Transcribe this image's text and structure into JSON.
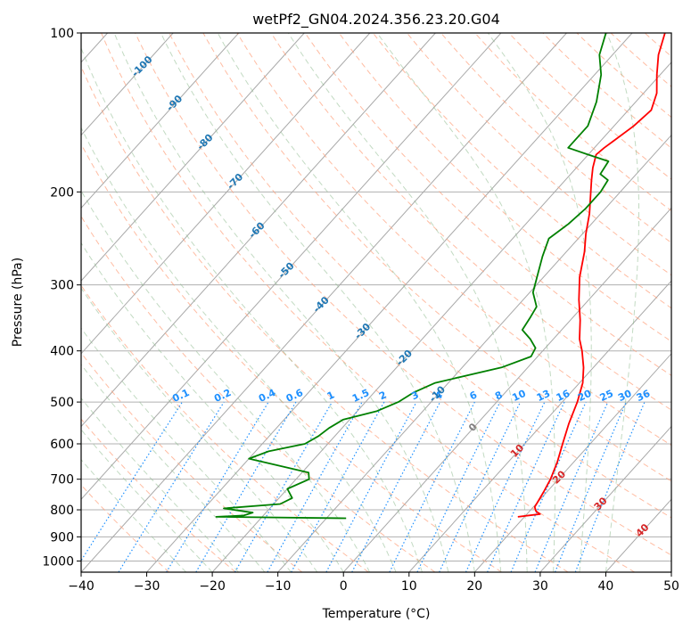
{
  "chart_data": {
    "type": "line",
    "subtype": "skew-T log-P diagram",
    "title": "wetPf2_GN04.2024.356.23.20.G04",
    "xlabel": "Temperature (°C)",
    "ylabel": "Pressure (hPa)",
    "xlim": [
      -40,
      50
    ],
    "ylim": [
      1050,
      100
    ],
    "yscale": "log",
    "x_ticks": [
      -40,
      -30,
      -20,
      -10,
      0,
      10,
      20,
      30,
      40,
      50
    ],
    "y_ticks": [
      100,
      200,
      300,
      400,
      500,
      600,
      700,
      800,
      900,
      1000
    ],
    "grid": true,
    "series": [
      {
        "name": "",
        "color": "#ff0000",
        "points": [
          [
            825,
            19.0
          ],
          [
            815,
            22.0
          ],
          [
            805,
            21.0
          ],
          [
            790,
            20.2
          ],
          [
            775,
            20.0
          ],
          [
            740,
            19.5
          ],
          [
            700,
            18.8
          ],
          [
            650,
            17.5
          ],
          [
            600,
            15.8
          ],
          [
            550,
            14.0
          ],
          [
            500,
            12.3
          ],
          [
            460,
            10.5
          ],
          [
            430,
            8.5
          ],
          [
            400,
            6.0
          ],
          [
            380,
            4.0
          ],
          [
            350,
            1.5
          ],
          [
            320,
            -1.5
          ],
          [
            290,
            -4.5
          ],
          [
            260,
            -7.2
          ],
          [
            240,
            -9.5
          ],
          [
            220,
            -11.7
          ],
          [
            200,
            -14.5
          ],
          [
            190,
            -16.0
          ],
          [
            180,
            -17.5
          ],
          [
            170,
            -18.8
          ],
          [
            165,
            -18.5
          ],
          [
            160,
            -18.0
          ],
          [
            150,
            -17.0
          ],
          [
            140,
            -16.5
          ],
          [
            130,
            -18.0
          ],
          [
            120,
            -20.5
          ],
          [
            110,
            -23.0
          ],
          [
            100,
            -25.0
          ]
        ]
      },
      {
        "name": "",
        "color": "#008000",
        "points": [
          [
            830,
            -7.0
          ],
          [
            825,
            -27.0
          ],
          [
            820,
            -23.0
          ],
          [
            810,
            -22.0
          ],
          [
            795,
            -27.0
          ],
          [
            780,
            -19.0
          ],
          [
            760,
            -18.0
          ],
          [
            730,
            -20.0
          ],
          [
            700,
            -18.0
          ],
          [
            680,
            -19.0
          ],
          [
            640,
            -30.0
          ],
          [
            620,
            -28.0
          ],
          [
            600,
            -23.5
          ],
          [
            580,
            -22.5
          ],
          [
            560,
            -22.0
          ],
          [
            540,
            -21.0
          ],
          [
            520,
            -17.0
          ],
          [
            500,
            -15.0
          ],
          [
            480,
            -14.0
          ],
          [
            460,
            -12.0
          ],
          [
            430,
            -4.0
          ],
          [
            410,
            -1.0
          ],
          [
            395,
            -1.5
          ],
          [
            380,
            -3.5
          ],
          [
            365,
            -6.0
          ],
          [
            345,
            -6.5
          ],
          [
            330,
            -7.0
          ],
          [
            310,
            -9.5
          ],
          [
            290,
            -11.0
          ],
          [
            265,
            -13.0
          ],
          [
            245,
            -14.5
          ],
          [
            230,
            -13.5
          ],
          [
            215,
            -13.0
          ],
          [
            200,
            -13.0
          ],
          [
            190,
            -13.5
          ],
          [
            185,
            -15.5
          ],
          [
            175,
            -16.0
          ],
          [
            170,
            -20.0
          ],
          [
            165,
            -24.0
          ],
          [
            150,
            -24.0
          ],
          [
            135,
            -26.0
          ],
          [
            120,
            -29.0
          ],
          [
            110,
            -32.0
          ],
          [
            100,
            -34.0
          ]
        ]
      }
    ],
    "background_lines": {
      "dry_adiabats_color": "#ffa07a",
      "moist_adiabats_color": "#8fbc8f",
      "mixing_ratio_color": "#1e90ff",
      "isotherm_color": "#808080",
      "isobar_color": "#a0a0a0"
    },
    "mixing_ratio_labels": [
      "0.1",
      "0.2",
      "0.4",
      "0.6",
      "1",
      "1.5",
      "2",
      "3",
      "4",
      "6",
      "8",
      "10",
      "13",
      "16",
      "20",
      "25",
      "30",
      "36"
    ],
    "isotherm_labels": [
      {
        "text": "-100",
        "color": "#1f77b4"
      },
      {
        "text": "-90",
        "color": "#1f77b4"
      },
      {
        "text": "-80",
        "color": "#1f77b4"
      },
      {
        "text": "-70",
        "color": "#1f77b4"
      },
      {
        "text": "-60",
        "color": "#1f77b4"
      },
      {
        "text": "-50",
        "color": "#1f77b4"
      },
      {
        "text": "-40",
        "color": "#1f77b4"
      },
      {
        "text": "-30",
        "color": "#1f77b4"
      },
      {
        "text": "-20",
        "color": "#1f77b4"
      },
      {
        "text": "-10",
        "color": "#1f77b4"
      },
      {
        "text": "0",
        "color": "#808080"
      },
      {
        "text": "10",
        "color": "#d62728"
      },
      {
        "text": "20",
        "color": "#d62728"
      },
      {
        "text": "30",
        "color": "#d62728"
      },
      {
        "text": "40",
        "color": "#d62728"
      }
    ]
  }
}
